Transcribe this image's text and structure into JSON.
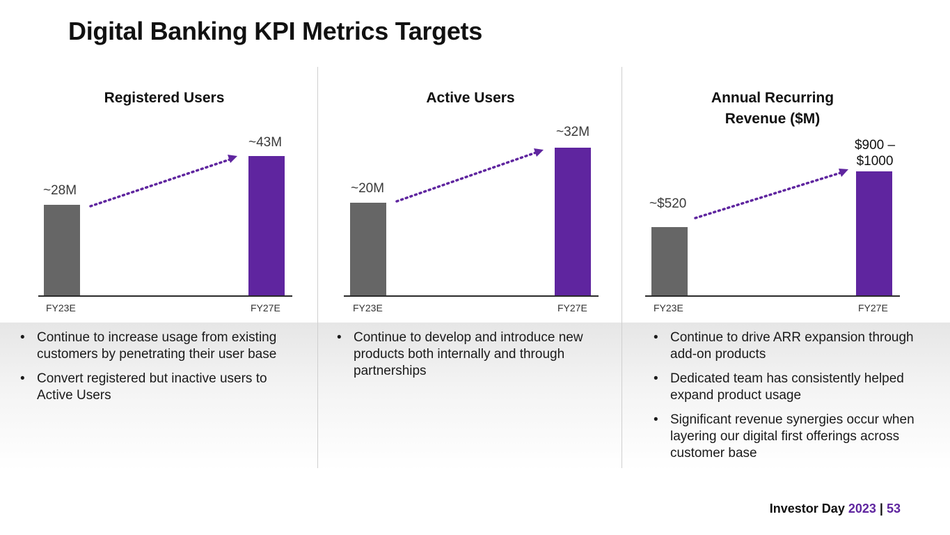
{
  "title": "Digital Banking KPI Metrics Targets",
  "colors": {
    "fy23_bar": "#666666",
    "fy27_bar": "#5f259f",
    "accent": "#5f259f"
  },
  "chart_data": [
    {
      "type": "bar",
      "title": "Registered Users",
      "categories": [
        "FY23E",
        "FY27E"
      ],
      "values": [
        28,
        43
      ],
      "unit": "M",
      "data_labels": [
        "~28M",
        "~43M"
      ],
      "ylim": [
        0,
        50
      ],
      "annotations": [
        "dotted growth arrow from FY23E to FY27E"
      ]
    },
    {
      "type": "bar",
      "title": "Active Users",
      "categories": [
        "FY23E",
        "FY27E"
      ],
      "values": [
        20,
        32
      ],
      "unit": "M",
      "data_labels": [
        "~20M",
        "~32M"
      ],
      "ylim": [
        0,
        32
      ],
      "annotations": [
        "dotted growth arrow from FY23E to FY27E"
      ]
    },
    {
      "type": "bar",
      "title": "Annual Recurring Revenue ($M)",
      "title_lines": [
        "Annual Recurring",
        "Revenue ($M)"
      ],
      "categories": [
        "FY23E",
        "FY27E"
      ],
      "values": [
        520,
        950
      ],
      "unit": "$M",
      "data_labels": [
        "~$520",
        "$900 – $1000"
      ],
      "data_label_lines": [
        [
          "~$520"
        ],
        [
          "$900 –",
          "$1000"
        ]
      ],
      "ylim": [
        0,
        1200
      ],
      "annotations": [
        "dotted growth arrow from FY23E to FY27E"
      ]
    }
  ],
  "bullets": [
    [
      "Continue to increase usage from existing customers by penetrating their user base",
      "Convert registered but inactive users to Active Users"
    ],
    [
      "Continue to develop and introduce new products both internally and through partnerships"
    ],
    [
      "Continue to drive ARR expansion through add-on products",
      "Dedicated team has consistently helped expand product usage",
      "Significant revenue synergies occur when layering our digital first offerings across customer base"
    ]
  ],
  "footer": {
    "label": "Investor Day",
    "year": "2023",
    "separator": "|",
    "page": "53"
  }
}
